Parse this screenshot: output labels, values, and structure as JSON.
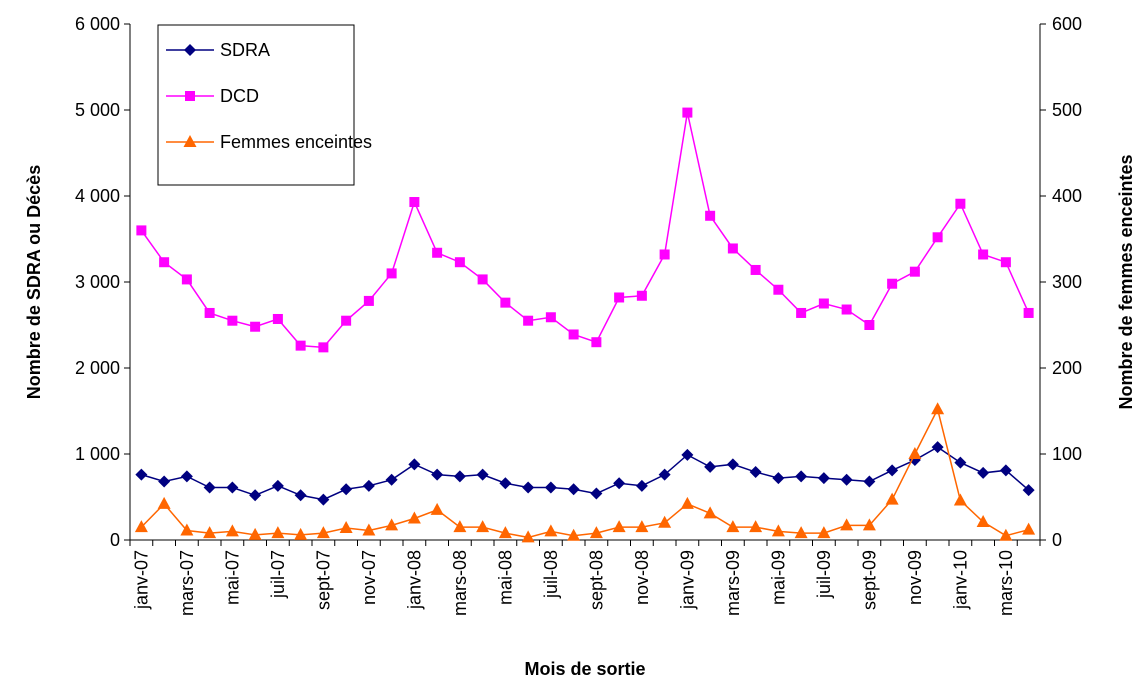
{
  "chart_data": {
    "type": "line",
    "x_label": "Mois de sortie",
    "y_label": "Nombre de SDRA ou Décès",
    "y2_label": "Nombre de femmes enceintes",
    "categories": [
      "janv-07",
      null,
      "mars-07",
      null,
      "mai-07",
      null,
      "juil-07",
      null,
      "sept-07",
      null,
      "nov-07",
      null,
      "janv-08",
      null,
      "mars-08",
      null,
      "mai-08",
      null,
      "juil-08",
      null,
      "sept-08",
      null,
      "nov-08",
      null,
      "janv-09",
      null,
      "mars-09",
      null,
      "mai-09",
      null,
      "juil-09",
      null,
      "sept-09",
      null,
      "nov-09",
      null,
      "janv-10",
      null,
      "mars-10",
      null
    ],
    "ylim": [
      0,
      6000
    ],
    "yticks": [
      {
        "value": 0,
        "label": "0"
      },
      {
        "value": 1000,
        "label": "1 000"
      },
      {
        "value": 2000,
        "label": "2 000"
      },
      {
        "value": 3000,
        "label": "3 000"
      },
      {
        "value": 4000,
        "label": "4 000"
      },
      {
        "value": 5000,
        "label": "5 000"
      },
      {
        "value": 6000,
        "label": "6 000"
      }
    ],
    "y2lim": [
      0,
      600
    ],
    "y2ticks": [
      0,
      100,
      200,
      300,
      400,
      500,
      600
    ],
    "legend": "upper left",
    "series": [
      {
        "name": "SDRA",
        "color": "#000080",
        "marker": "diamond",
        "values": [
          760,
          680,
          740,
          610,
          610,
          520,
          630,
          520,
          470,
          590,
          630,
          700,
          880,
          760,
          740,
          760,
          660,
          610,
          610,
          590,
          540,
          660,
          630,
          760,
          990,
          850,
          880,
          790,
          720,
          740,
          720,
          700,
          680,
          810,
          930,
          1080,
          900,
          780,
          810,
          580
        ]
      },
      {
        "name": "DCD",
        "color": "#ff00ff",
        "marker": "square",
        "values": [
          3600,
          3230,
          3030,
          2640,
          2550,
          2480,
          2570,
          2260,
          2240,
          2550,
          2780,
          3100,
          3930,
          3340,
          3230,
          3030,
          2760,
          2550,
          2590,
          2390,
          2300,
          2820,
          2840,
          3320,
          4970,
          3770,
          3390,
          3140,
          2910,
          2640,
          2750,
          2680,
          2500,
          2980,
          3120,
          3520,
          3910,
          3320,
          3230,
          2640
        ]
      },
      {
        "name": "Femmes enceintes",
        "color": "#ff6600",
        "marker": "triangle",
        "axis": "y2",
        "values": [
          15,
          42,
          11,
          8,
          10,
          6,
          8,
          6,
          8,
          14,
          11,
          17,
          25,
          35,
          15,
          15,
          8,
          3,
          10,
          5,
          8,
          15,
          15,
          20,
          42,
          31,
          15,
          15,
          10,
          8,
          8,
          17,
          17,
          47,
          100,
          152,
          46,
          21,
          5,
          12
        ]
      }
    ]
  }
}
